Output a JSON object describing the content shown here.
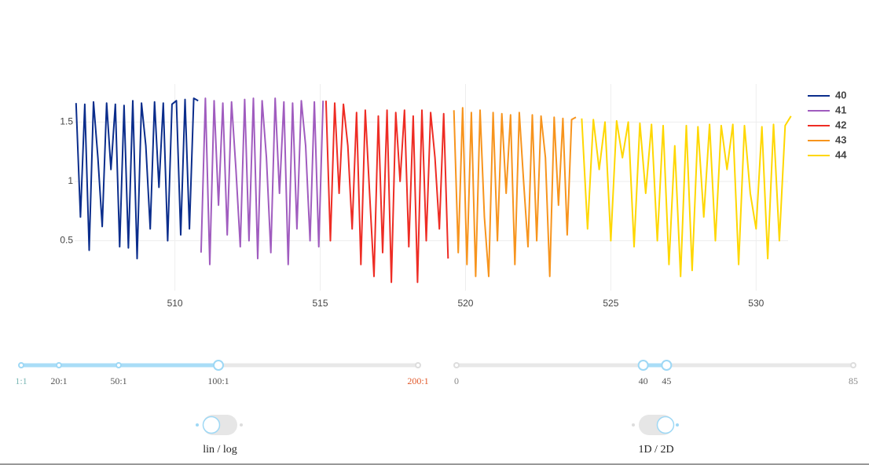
{
  "chart_data": {
    "type": "line",
    "xlim": [
      506.55,
      531.1
    ],
    "ylim": [
      0.08,
      1.82
    ],
    "xticks": [
      510,
      515,
      520,
      525,
      530
    ],
    "yticks": [
      0.5,
      1,
      1.5
    ],
    "grid": true,
    "legend": "top-right",
    "series": [
      {
        "name": "40",
        "color": "#0b2d8c",
        "x": [
          506.6,
          506.75,
          506.9,
          507.05,
          507.2,
          507.35,
          507.5,
          507.65,
          507.8,
          507.95,
          508.1,
          508.25,
          508.4,
          508.55,
          508.7,
          508.85,
          509.0,
          509.15,
          509.3,
          509.45,
          509.6,
          509.75,
          509.9,
          510.05,
          510.2,
          510.35,
          510.5,
          510.65,
          510.8
        ],
        "values": [
          1.66,
          0.7,
          1.65,
          0.42,
          1.67,
          1.2,
          0.62,
          1.66,
          1.1,
          1.65,
          0.45,
          1.64,
          0.44,
          1.68,
          0.35,
          1.66,
          1.3,
          0.6,
          1.67,
          0.95,
          1.66,
          0.5,
          1.65,
          1.68,
          0.55,
          1.69,
          0.6,
          1.7,
          1.68
        ]
      },
      {
        "name": "41",
        "color": "#a05cbf",
        "x": [
          510.9,
          511.05,
          511.2,
          511.35,
          511.5,
          511.65,
          511.8,
          511.95,
          512.1,
          512.25,
          512.4,
          512.55,
          512.7,
          512.85,
          513.0,
          513.15,
          513.3,
          513.45,
          513.6,
          513.75,
          513.9,
          514.05,
          514.2,
          514.35,
          514.5,
          514.65,
          514.8,
          514.95,
          515.1
        ],
        "values": [
          0.4,
          1.7,
          0.3,
          1.68,
          0.8,
          1.66,
          0.55,
          1.67,
          1.1,
          0.45,
          1.69,
          0.5,
          1.7,
          0.35,
          1.68,
          1.2,
          0.4,
          1.7,
          0.9,
          1.67,
          0.3,
          1.66,
          0.6,
          1.68,
          1.3,
          0.5,
          1.67,
          0.45,
          1.68
        ]
      },
      {
        "name": "42",
        "color": "#ee2c24",
        "x": [
          515.2,
          515.35,
          515.5,
          515.65,
          515.8,
          515.95,
          516.1,
          516.25,
          516.4,
          516.55,
          516.7,
          516.85,
          517.0,
          517.15,
          517.3,
          517.45,
          517.6,
          517.75,
          517.9,
          518.05,
          518.2,
          518.35,
          518.5,
          518.65,
          518.8,
          518.95,
          519.1,
          519.25,
          519.4
        ],
        "values": [
          1.68,
          0.5,
          1.66,
          0.9,
          1.65,
          1.3,
          0.6,
          1.58,
          0.3,
          1.6,
          0.9,
          0.2,
          1.55,
          0.4,
          1.6,
          0.15,
          1.58,
          1.0,
          1.6,
          0.45,
          1.55,
          0.15,
          1.6,
          0.5,
          1.58,
          1.2,
          0.6,
          1.57,
          0.35
        ]
      },
      {
        "name": "43",
        "color": "#f7941d",
        "x": [
          519.6,
          519.75,
          519.9,
          520.05,
          520.2,
          520.35,
          520.5,
          520.65,
          520.8,
          520.95,
          521.1,
          521.25,
          521.4,
          521.55,
          521.7,
          521.85,
          522.0,
          522.15,
          522.3,
          522.45,
          522.6,
          522.75,
          522.9,
          523.05,
          523.2,
          523.35,
          523.5,
          523.65,
          523.8
        ],
        "values": [
          1.6,
          0.4,
          1.62,
          0.3,
          1.58,
          0.2,
          1.6,
          0.7,
          0.2,
          1.58,
          0.5,
          1.57,
          0.9,
          1.56,
          0.3,
          1.58,
          1.0,
          0.45,
          1.56,
          0.5,
          1.55,
          1.2,
          0.2,
          1.54,
          0.8,
          1.53,
          0.55,
          1.52,
          1.54
        ]
      },
      {
        "name": "44",
        "color": "#ffd700",
        "x": [
          524.0,
          524.2,
          524.4,
          524.6,
          524.8,
          525.0,
          525.2,
          525.4,
          525.6,
          525.8,
          526.0,
          526.2,
          526.4,
          526.6,
          526.8,
          527.0,
          527.2,
          527.4,
          527.6,
          527.8,
          528.0,
          528.2,
          528.4,
          528.6,
          528.8,
          529.0,
          529.2,
          529.4,
          529.6,
          529.8,
          530.0,
          530.2,
          530.4,
          530.6,
          530.8,
          531.0,
          531.2
        ],
        "values": [
          1.53,
          0.6,
          1.52,
          1.1,
          1.5,
          0.5,
          1.51,
          1.2,
          1.5,
          0.45,
          1.49,
          0.9,
          1.48,
          0.5,
          1.47,
          0.3,
          1.3,
          0.2,
          1.47,
          0.25,
          1.46,
          0.7,
          1.48,
          0.5,
          1.47,
          1.1,
          1.48,
          0.3,
          1.47,
          0.9,
          0.6,
          1.46,
          0.35,
          1.48,
          0.5,
          1.47,
          1.55
        ]
      }
    ]
  },
  "controls": {
    "zoom_slider": {
      "labels": [
        "1:1",
        "20:1",
        "50:1",
        "100:1",
        "200:1"
      ],
      "selected": 3
    },
    "range_slider": {
      "min": 0,
      "max": 85,
      "values": [
        40,
        45
      ]
    },
    "toggles": [
      {
        "label": "lin / log",
        "on": false
      },
      {
        "label": "1D / 2D",
        "on": true
      }
    ]
  }
}
